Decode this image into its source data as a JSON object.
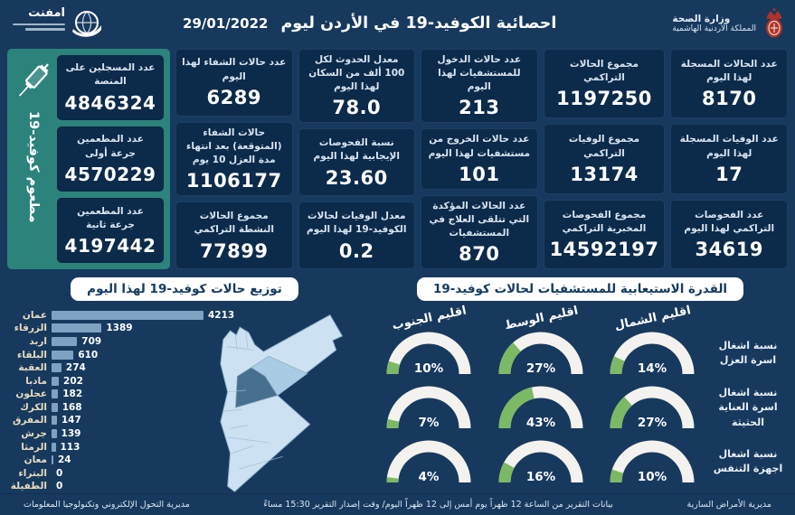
{
  "header": {
    "title": "احصائية الكوفيد-19 في الأردن ليوم",
    "date": "29/01/2022",
    "ministry": {
      "line1": "وزارة الصحة",
      "line2": "المملكة الأردنية الهاشمية"
    },
    "emphnet": {
      "name": "امفنت"
    }
  },
  "stats": {
    "columns": [
      [
        {
          "label": "عدد الحالات المسجلة لهذا اليوم",
          "value": "8170"
        },
        {
          "label": "عدد الوفيات المسجلة لهذا اليوم",
          "value": "17"
        },
        {
          "label": "عدد الفحوصات التراكمي لهذا اليوم",
          "value": "34619"
        }
      ],
      [
        {
          "label": "مجموع الحالات التراكمي",
          "value": "1197250"
        },
        {
          "label": "مجموع الوفيات التراكمي",
          "value": "13174"
        },
        {
          "label": "مجموع الفحوصات المخبرية التراكمي",
          "value": "14592197"
        }
      ],
      [
        {
          "label": "عدد حالات الدخول للمستشفيات لهذا اليوم",
          "value": "213"
        },
        {
          "label": "عدد حالات الخروج من مستشفيات لهذا اليوم",
          "value": "101"
        },
        {
          "label": "عدد الحالات المؤكدة التي تتلقى العلاج في المستشفيات",
          "value": "870"
        }
      ],
      [
        {
          "label": "معدل الحدوث لكل 100 ألف من السكان لهذا اليوم",
          "value": "78.0"
        },
        {
          "label": "نسبة الفحوصات الإيجابية لهذا اليوم",
          "value": "23.60"
        },
        {
          "label": "معدل الوفيات لحالات الكوفيد-19 لهذا اليوم",
          "value": "0.2"
        }
      ],
      [
        {
          "label": "عدد حالات الشفاء لهذا اليوم",
          "value": "6289"
        },
        {
          "label": "حالات الشفاء (المتوقعة) بعد انتهاء مدة العزل 10 يوم",
          "value": "1106177"
        },
        {
          "label": "مجموع الحالات النشطة التراكمي",
          "value": "77899"
        }
      ]
    ]
  },
  "vaccination": {
    "vertical_label": "مطعوم كوفيد-19",
    "cards": [
      {
        "label": "عدد المسجلين على المنصة",
        "value": "4846324"
      },
      {
        "label": "عدد المطعمين جرعة أولى",
        "value": "4570229"
      },
      {
        "label": "عدد المطعمين جرعة ثانية",
        "value": "4197442"
      }
    ]
  },
  "chart_data": [
    {
      "type": "bar",
      "orientation": "horizontal",
      "title": "توزيع حالات كوفيد-19 لهذا اليوم",
      "categories": [
        "عمان",
        "الزرقاء",
        "اربد",
        "البلقاء",
        "العقبة",
        "مادبا",
        "عجلون",
        "الكرك",
        "المفرق",
        "جرش",
        "الرمثا",
        "معان",
        "البتراء",
        "الطفيلة"
      ],
      "values": [
        4213,
        1389,
        709,
        610,
        274,
        202,
        182,
        168,
        147,
        139,
        113,
        24,
        0,
        0
      ],
      "xlim": [
        0,
        4213
      ],
      "bar_color": "#7FA2C2"
    },
    {
      "type": "gauge",
      "title": "القدرة الاستيعابية للمستشفيات لحالات كوفيد-19",
      "unit": "%",
      "columns": [
        "اقليم الشمال",
        "اقليم الوسط",
        "اقليم الجنوب"
      ],
      "rows": [
        {
          "label": "نسبة اشغال اسرة العزل",
          "values": [
            14,
            27,
            10
          ]
        },
        {
          "label": "نسبة اشغال اسرة العناية الحثيثة",
          "values": [
            27,
            43,
            7
          ]
        },
        {
          "label": "نسبة اشغال اجهزة التنفس",
          "values": [
            10,
            16,
            4
          ]
        }
      ],
      "gauge_green": "#7CB965",
      "gauge_track": "#F3F2EE"
    }
  ],
  "footer": {
    "right": "مديرية الأمراض السارية",
    "center": "بيانات التقرير من الساعة 12 ظهراً يوم أمس إلى 12 ظهراً اليوم/ وقت إصدار التقرير 15:30 مساءً",
    "left": "مديرية التحول الإلكتروني وتكنولوجيا المعلومات"
  },
  "colors": {
    "background": "#17395E",
    "card": "#0C2A4A",
    "sidebar_teal": "#2B837C",
    "bar_blue": "#7FA2C2",
    "label_tan": "#E9DCBE",
    "gauge_green": "#7CB965",
    "crest_red": "#B03228",
    "map_fill": "#CCE2F2",
    "map_amman": "#47708F",
    "map_zarqa": "#A9CBE3"
  }
}
